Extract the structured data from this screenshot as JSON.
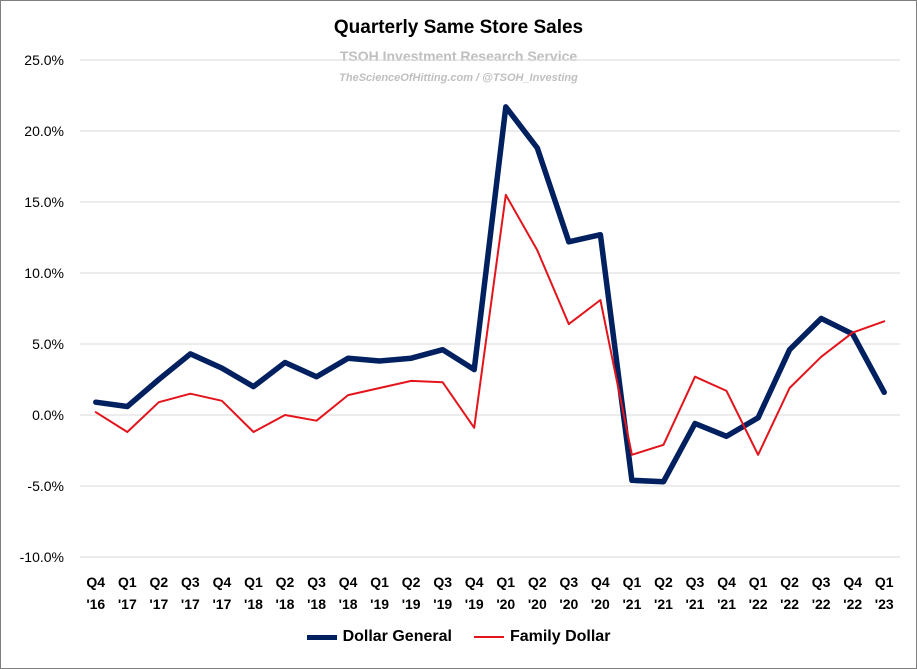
{
  "chart_data": {
    "type": "line",
    "title": "Quarterly Same Store Sales",
    "subtitle": "TSOH Investment Research Service",
    "credit": "TheScienceOfHitting.com / @TSOH_Investing",
    "xlabel": "",
    "ylabel": "",
    "ylim": [
      -10,
      25
    ],
    "yticks": [
      "-10.0%",
      "-5.0%",
      "0.0%",
      "5.0%",
      "10.0%",
      "15.0%",
      "20.0%",
      "25.0%"
    ],
    "grid": true,
    "legend_position": "bottom",
    "categories": [
      [
        "Q4",
        "'16"
      ],
      [
        "Q1",
        "'17"
      ],
      [
        "Q2",
        "'17"
      ],
      [
        "Q3",
        "'17"
      ],
      [
        "Q4",
        "'17"
      ],
      [
        "Q1",
        "'18"
      ],
      [
        "Q2",
        "'18"
      ],
      [
        "Q3",
        "'18"
      ],
      [
        "Q4",
        "'18"
      ],
      [
        "Q1",
        "'19"
      ],
      [
        "Q2",
        "'19"
      ],
      [
        "Q3",
        "'19"
      ],
      [
        "Q4",
        "'19"
      ],
      [
        "Q1",
        "'20"
      ],
      [
        "Q2",
        "'20"
      ],
      [
        "Q3",
        "'20"
      ],
      [
        "Q4",
        "'20"
      ],
      [
        "Q1",
        "'21"
      ],
      [
        "Q2",
        "'21"
      ],
      [
        "Q3",
        "'21"
      ],
      [
        "Q4",
        "'21"
      ],
      [
        "Q1",
        "'22"
      ],
      [
        "Q2",
        "'22"
      ],
      [
        "Q3",
        "'22"
      ],
      [
        "Q4",
        "'22"
      ],
      [
        "Q1",
        "'23"
      ]
    ],
    "series": [
      {
        "name": "Dollar General",
        "color": "#002060",
        "values": [
          0.9,
          0.6,
          2.5,
          4.3,
          3.3,
          2.0,
          3.7,
          2.7,
          4.0,
          3.8,
          4.0,
          4.6,
          3.2,
          21.7,
          18.8,
          12.2,
          12.7,
          -4.6,
          -4.7,
          -0.6,
          -1.5,
          -0.2,
          4.6,
          6.8,
          5.7,
          1.6
        ]
      },
      {
        "name": "Family Dollar",
        "color": "#e3141b",
        "values": [
          0.2,
          -1.2,
          0.9,
          1.5,
          1.0,
          -1.2,
          0.0,
          -0.4,
          1.4,
          1.9,
          2.4,
          2.3,
          -0.9,
          15.5,
          11.6,
          6.4,
          8.1,
          -2.8,
          -2.1,
          2.7,
          1.7,
          -2.8,
          1.9,
          4.1,
          5.8,
          6.6
        ]
      }
    ]
  }
}
